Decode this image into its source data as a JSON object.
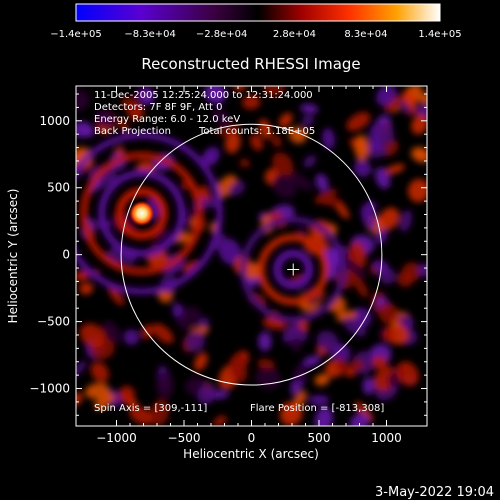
{
  "chart_data": {
    "type": "heatmap",
    "title": "Reconstructed RHESSI Image",
    "xlabel": "Heliocentric X (arcsec)",
    "ylabel": "Heliocentric Y (arcsec)",
    "xlim": [
      -1300,
      1300
    ],
    "ylim": [
      -1280,
      1260
    ],
    "x_ticks": [
      -1000,
      -500,
      0,
      500,
      1000
    ],
    "x_tick_labels": [
      "−1000",
      "−500",
      "0",
      "500",
      "1000"
    ],
    "y_ticks": [
      -1000,
      -500,
      0,
      500,
      1000
    ],
    "y_tick_labels": [
      "−1000",
      "−500",
      "0",
      "500",
      "1000"
    ],
    "colorbar": {
      "range": [
        -140000,
        140000
      ],
      "tick_values": [
        -140000,
        -83000,
        -28000,
        28000,
        83000,
        140000
      ],
      "tick_labels": [
        "−1.4e+05",
        "−8.3e+04",
        "−2.8e+04",
        "2.8e+04",
        "8.3e+04",
        "1.4e+05"
      ],
      "colors": [
        "#0000ff",
        "#6a00c8",
        "#1a0010",
        "#000000",
        "#a00000",
        "#ff3000",
        "#ffa000",
        "#ffffb0",
        "#ffffff"
      ]
    },
    "annotations": [
      "11-Dec-2005 12:25:24.000 to 12:31:24.000",
      "Detectors: 7F 8F 9F, Att 0",
      "Energy Range: 6.0 - 12.0 keV",
      "Back Projection",
      "Total counts: 1.18E+05",
      "Spin Axis = [309,-111]",
      "Flare Position = [-813,308]"
    ],
    "solar_limb": {
      "center": [
        0,
        0
      ],
      "radius_arcsec": 970
    },
    "spin_axis_marker": [
      309,
      -111
    ],
    "bright_source": {
      "x": -813,
      "y": 308
    }
  },
  "footer": {
    "date": "3-May-2022 19:04"
  }
}
